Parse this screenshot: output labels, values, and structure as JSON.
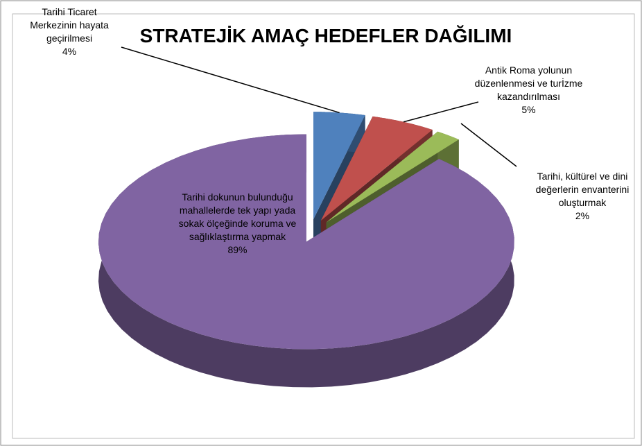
{
  "chart_data": {
    "type": "pie3d",
    "title": "STRATEJİK AMAÇ HEDEFLER DAĞILIMI",
    "categories": [
      "Tarihi Ticaret Merkezinin hayata geçirilmesi",
      "Antik Roma yolunun düzenlenmesi ve turİzme kazandırılması",
      "Tarihi, kültürel ve dini değerlerin envanterini oluşturmak",
      "Tarihi dokunun bulunduğu mahallelerde tek yapı yada sokak ölçeğinde koruma ve sağlıklaştırma yapmak"
    ],
    "values": [
      4,
      5,
      2,
      89
    ],
    "value_labels": [
      "4%",
      "5%",
      "2%",
      "89%"
    ],
    "colors": [
      "#4f81bd",
      "#c0504d",
      "#9bbb59",
      "#8064a2"
    ]
  }
}
